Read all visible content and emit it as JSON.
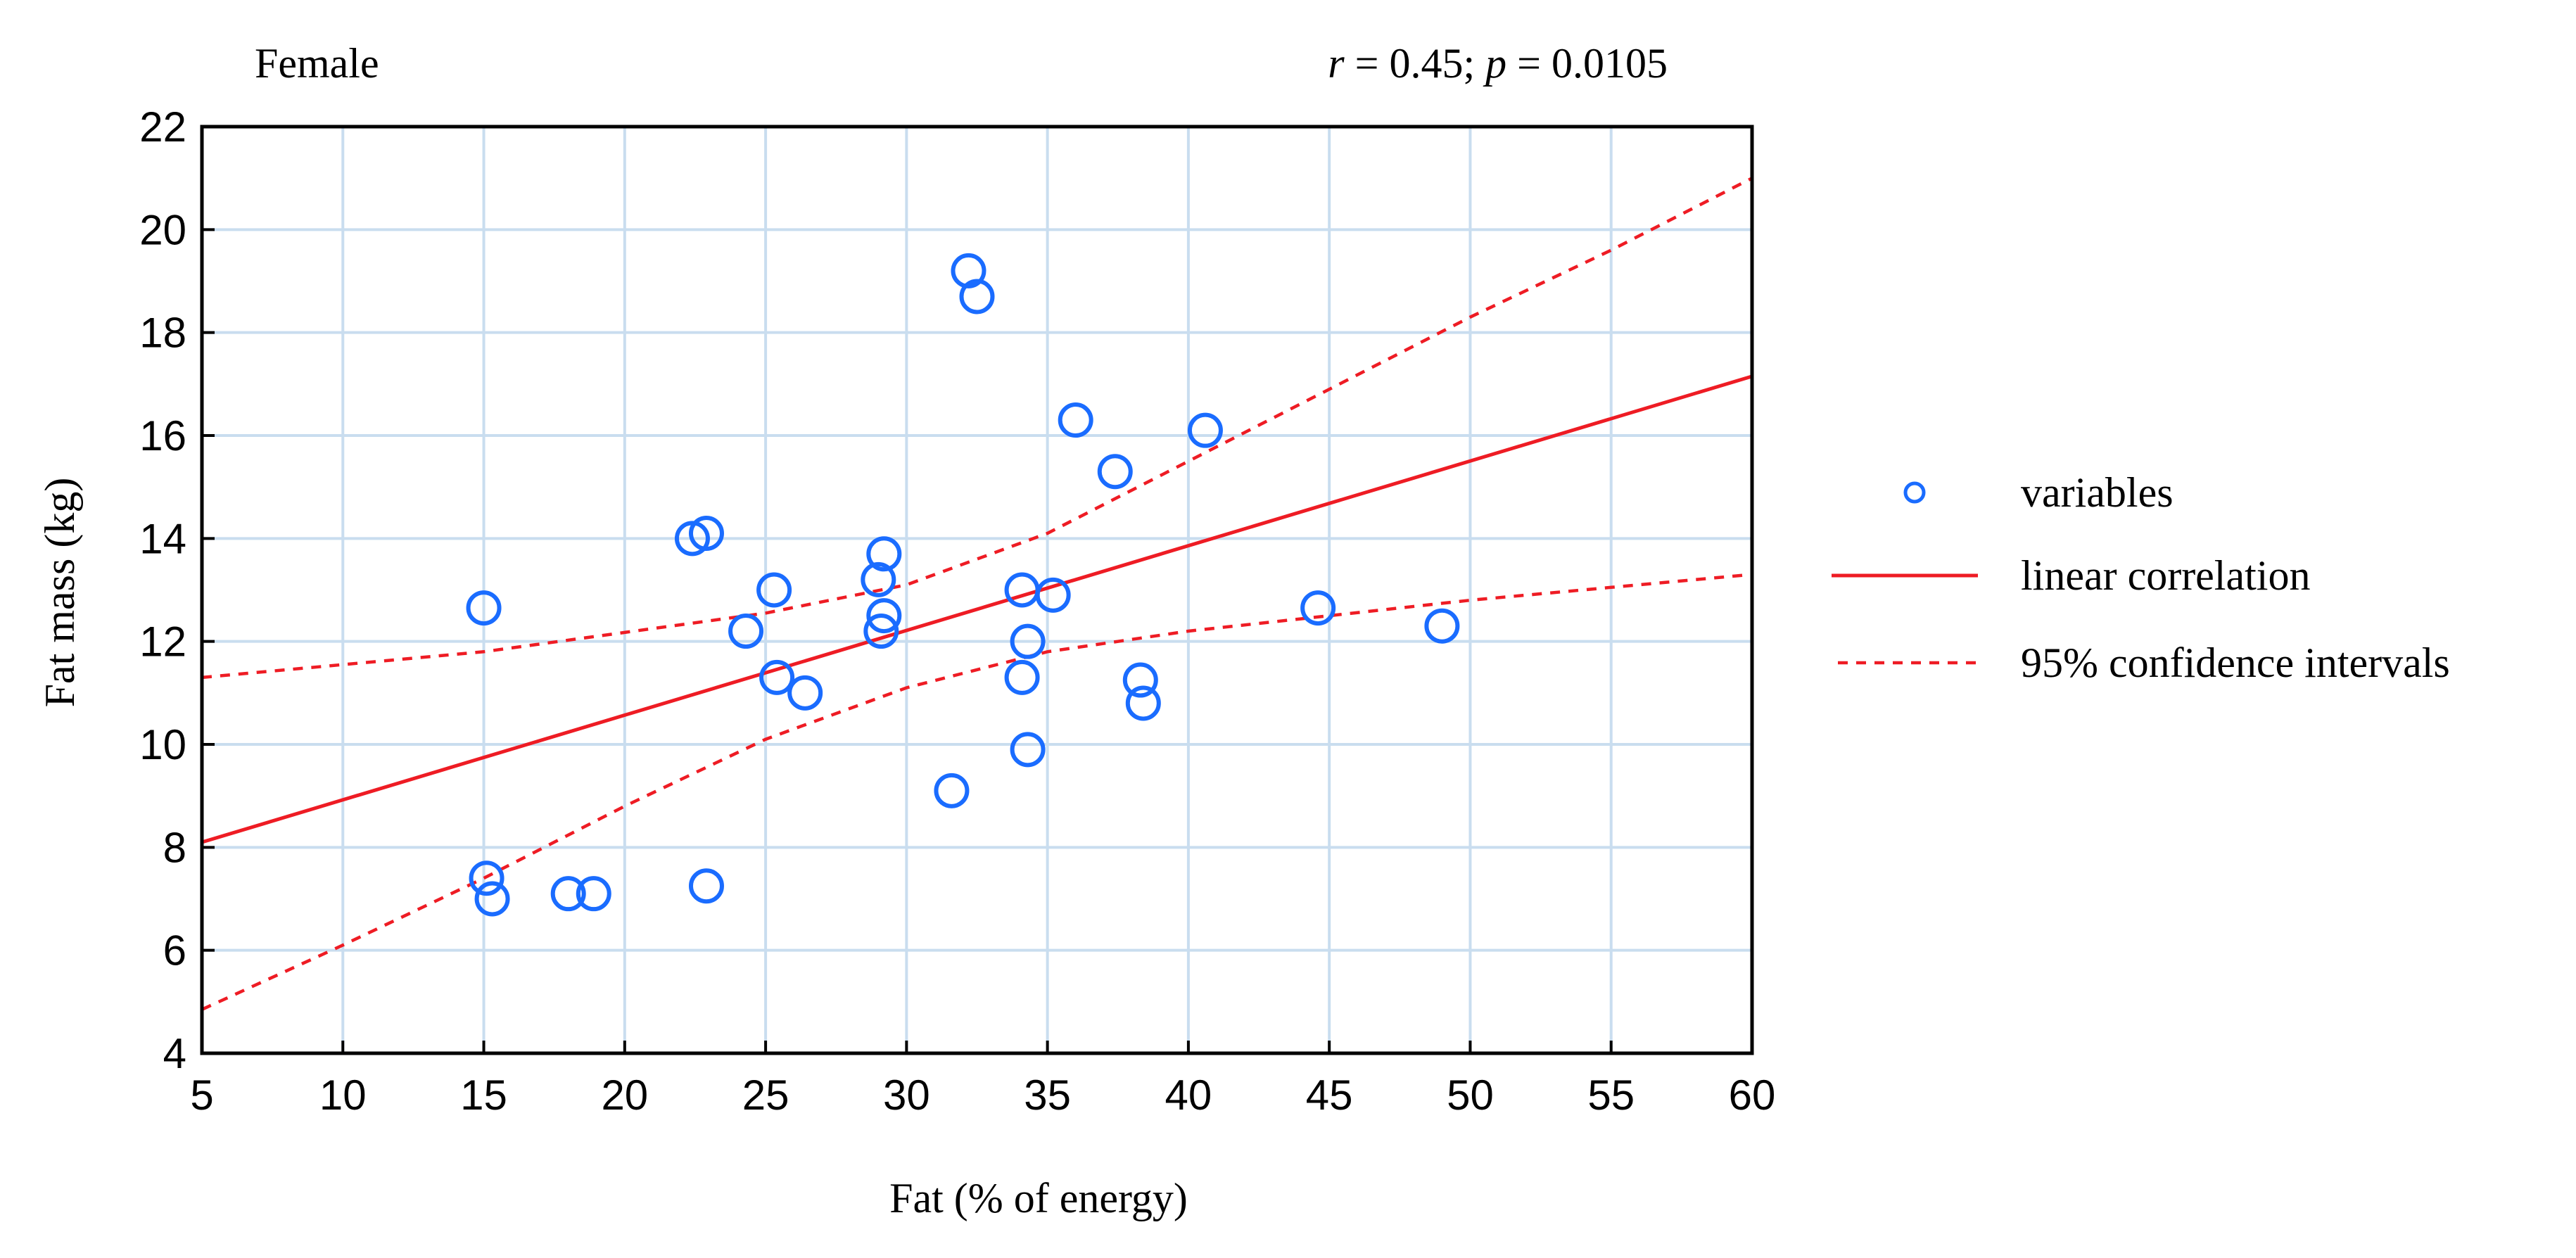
{
  "chart_data": {
    "type": "scatter",
    "panel_label": "Female",
    "stats": {
      "r_symbol": "r",
      "r_text": " = 0.45; ",
      "p_symbol": "p",
      "p_text": " = 0.0105"
    },
    "xlabel": "Fat (% of energy)",
    "ylabel": "Fat mass (kg)",
    "xlim": [
      5,
      60
    ],
    "ylim": [
      4,
      22
    ],
    "xticks": [
      5,
      10,
      15,
      20,
      25,
      30,
      35,
      40,
      45,
      50,
      55,
      60
    ],
    "yticks": [
      4,
      6,
      8,
      10,
      12,
      14,
      16,
      18,
      20,
      22
    ],
    "grid": true,
    "points": [
      {
        "x": 15.0,
        "y": 12.65
      },
      {
        "x": 15.1,
        "y": 7.4
      },
      {
        "x": 15.3,
        "y": 7.0
      },
      {
        "x": 18.0,
        "y": 7.1
      },
      {
        "x": 18.9,
        "y": 7.1
      },
      {
        "x": 22.4,
        "y": 14.0
      },
      {
        "x": 22.9,
        "y": 14.1
      },
      {
        "x": 22.9,
        "y": 7.25
      },
      {
        "x": 24.3,
        "y": 12.2
      },
      {
        "x": 25.3,
        "y": 13.0
      },
      {
        "x": 25.4,
        "y": 11.3
      },
      {
        "x": 26.4,
        "y": 11.0
      },
      {
        "x": 29.0,
        "y": 13.2
      },
      {
        "x": 29.1,
        "y": 12.2
      },
      {
        "x": 29.2,
        "y": 13.7
      },
      {
        "x": 29.2,
        "y": 12.5
      },
      {
        "x": 31.6,
        "y": 9.1
      },
      {
        "x": 32.2,
        "y": 19.2
      },
      {
        "x": 32.5,
        "y": 18.7
      },
      {
        "x": 34.1,
        "y": 13.0
      },
      {
        "x": 34.1,
        "y": 11.3
      },
      {
        "x": 34.3,
        "y": 12.0
      },
      {
        "x": 34.3,
        "y": 9.9
      },
      {
        "x": 35.2,
        "y": 12.9
      },
      {
        "x": 36.0,
        "y": 16.3
      },
      {
        "x": 37.4,
        "y": 15.3
      },
      {
        "x": 38.3,
        "y": 11.25
      },
      {
        "x": 38.4,
        "y": 10.8
      },
      {
        "x": 40.6,
        "y": 16.1
      },
      {
        "x": 44.6,
        "y": 12.65
      },
      {
        "x": 49.0,
        "y": 12.3
      }
    ],
    "fit_line": {
      "x": [
        5,
        60
      ],
      "y": [
        8.1,
        17.15
      ]
    },
    "ci_upper": {
      "x": [
        5,
        15,
        25,
        30,
        35,
        40,
        45,
        50,
        55,
        60
      ],
      "y": [
        11.3,
        11.8,
        12.55,
        13.1,
        14.1,
        15.5,
        16.9,
        18.3,
        19.6,
        21.0
      ]
    },
    "ci_lower": {
      "x": [
        5,
        10,
        15,
        20,
        25,
        30,
        35,
        40,
        45,
        50,
        55,
        60
      ],
      "y": [
        4.85,
        6.1,
        7.4,
        8.8,
        10.1,
        11.1,
        11.8,
        12.2,
        12.5,
        12.8,
        13.05,
        13.3
      ]
    },
    "legend": {
      "position": "right",
      "items": [
        {
          "kind": "marker",
          "label": "variables"
        },
        {
          "kind": "line",
          "label": "linear correlation"
        },
        {
          "kind": "dashed",
          "label": "95% confidence intervals"
        }
      ]
    },
    "colors": {
      "points": "#1a6cff",
      "fit": "#ee1c24",
      "grid": "#c9ddef"
    }
  }
}
